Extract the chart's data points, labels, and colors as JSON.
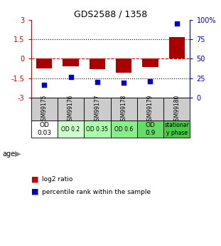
{
  "title": "GDS2588 / 1358",
  "samples": [
    "GSM99175",
    "GSM99176",
    "GSM99177",
    "GSM99178",
    "GSM99179",
    "GSM99180"
  ],
  "log2_ratio": [
    -0.75,
    -0.6,
    -0.8,
    -1.1,
    -0.65,
    1.65
  ],
  "percentile_rank": [
    17,
    27,
    20,
    19,
    21,
    95
  ],
  "ylim_left": [
    -3,
    3
  ],
  "ylim_right": [
    0,
    100
  ],
  "yticks_left": [
    -3,
    -1.5,
    0,
    1.5,
    3
  ],
  "ytick_labels_left": [
    "-3",
    "-1.5",
    "0",
    "1.5",
    "3"
  ],
  "yticks_right": [
    0,
    25,
    50,
    75,
    100
  ],
  "ytick_labels_right": [
    "0",
    "25",
    "50",
    "75",
    "100%"
  ],
  "bar_color": "#AA0000",
  "dot_color": "#0000CC",
  "age_labels": [
    "OD\n0.03",
    "OD 0.2",
    "OD 0.35",
    "OD 0.6",
    "OD\n0.9",
    "stationar\ny phase"
  ],
  "age_colors": [
    "#ffffff",
    "#ccffcc",
    "#aaffaa",
    "#88ee88",
    "#66dd66",
    "#44cc44"
  ],
  "sample_row_color": "#cccccc",
  "legend_bar_label": "log2 ratio",
  "legend_dot_label": "percentile rank within the sample",
  "bar_color_legend": "#CC0000",
  "dot_color_legend": "#0000CC"
}
